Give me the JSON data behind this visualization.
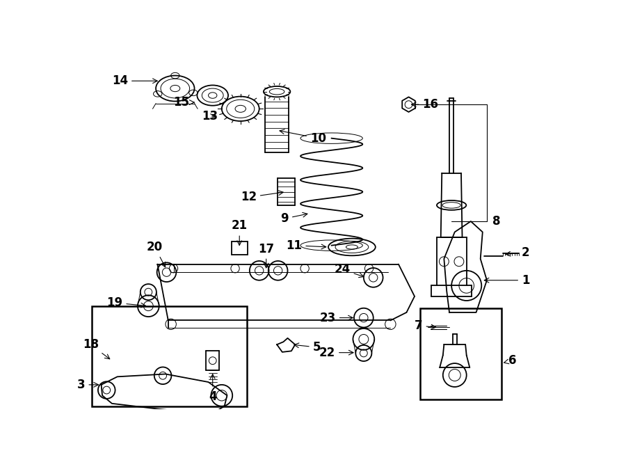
{
  "bg_color": "#ffffff",
  "line_color": "#000000",
  "lw_main": 1.3,
  "lw_thin": 0.7,
  "label_fontsize": 12
}
